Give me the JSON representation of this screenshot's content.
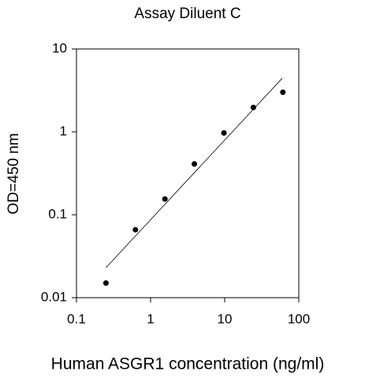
{
  "chart_data": {
    "type": "scatter",
    "title": "Assay Diluent C",
    "x_label": "Human ASGR1 concentration (ng/ml)",
    "y_label": "OD=450 nm",
    "x": [
      0.25,
      0.625,
      1.5625,
      3.9,
      9.77,
      24.4,
      61
    ],
    "values": [
      0.015,
      0.066,
      0.155,
      0.41,
      0.97,
      1.97,
      3.0
    ],
    "color": "#000000",
    "fit": {
      "x": [
        0.25,
        60
      ],
      "values": [
        0.023,
        4.45
      ]
    },
    "xscale": "log",
    "yscale": "log",
    "xlim": [
      0.1,
      100
    ],
    "ylim": [
      0.01,
      10
    ],
    "xticks": [
      0.1,
      1,
      10,
      100
    ],
    "yticks": [
      0.01,
      0.1,
      1,
      10
    ],
    "grid": false
  }
}
